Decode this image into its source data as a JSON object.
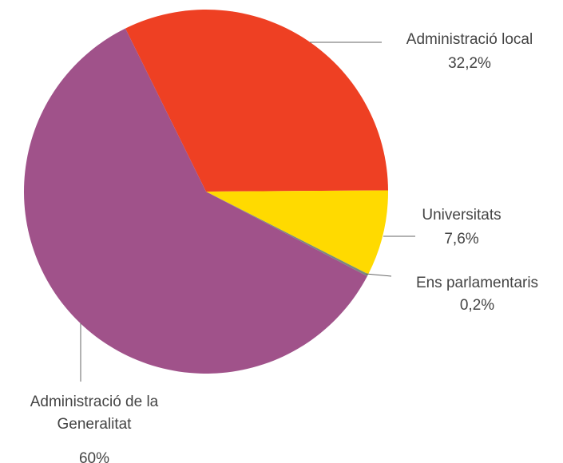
{
  "chart_data": {
    "type": "pie",
    "categories": [
      "Administració local",
      "Universitats",
      "Ens parlamentaris",
      "Administració de la Generalitat"
    ],
    "values": [
      32.2,
      7.6,
      0.2,
      60
    ],
    "value_labels": [
      "32,2%",
      "7,6%",
      "0,2%",
      "60%"
    ],
    "colors": [
      "#ee4023",
      "#ffda00",
      "#7b8a7e",
      "#a0528a"
    ]
  }
}
